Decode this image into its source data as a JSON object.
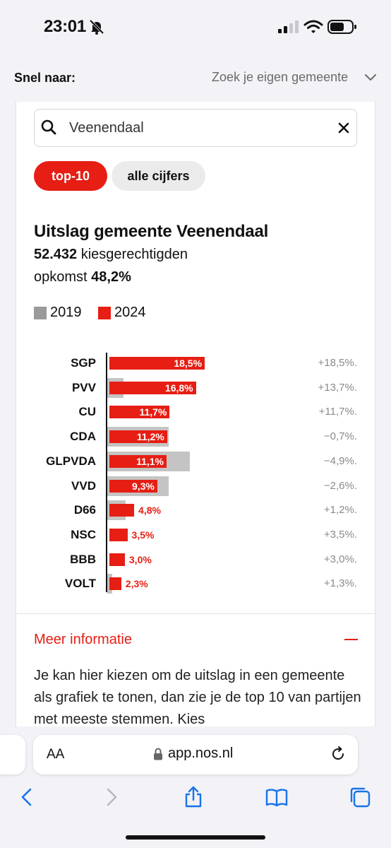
{
  "status": {
    "time": "23:01"
  },
  "snel": {
    "label": "Snel naar:",
    "select": "Zoek je eigen gemeente"
  },
  "search": {
    "value": "Veenendaal"
  },
  "tabs": {
    "top10": "top-10",
    "alle": "alle cijfers"
  },
  "result": {
    "title": "Uitslag gemeente Veenendaal",
    "voters_number": "52.432",
    "voters_label": " kiesgerechtigden",
    "turnout_label": "opkomst ",
    "turnout_value": "48,2%"
  },
  "legend": [
    {
      "label": "2019",
      "color": "#9a9a9a"
    },
    {
      "label": "2024",
      "color": "#e61e14"
    }
  ],
  "chart_data": {
    "type": "bar",
    "categories": [
      "SGP",
      "PVV",
      "CU",
      "CDA",
      "GLPVDA",
      "VVD",
      "D66",
      "NSC",
      "BBB",
      "VOLT"
    ],
    "series": [
      {
        "name": "2019",
        "values": [
          0,
          3.1,
          0,
          11.9,
          16.0,
          11.9,
          3.6,
          0,
          0,
          1.0
        ]
      },
      {
        "name": "2024",
        "values": [
          18.5,
          16.8,
          11.7,
          11.2,
          11.1,
          9.3,
          4.8,
          3.5,
          3.0,
          2.3
        ]
      }
    ],
    "labels": [
      "18,5%",
      "16,8%",
      "11,7%",
      "11,2%",
      "11,1%",
      "9,3%",
      "4,8%",
      "3,5%",
      "3,0%",
      "2,3%"
    ],
    "changes": [
      "+18,5%.",
      "+13,7%.",
      "+11,7%.",
      "−0,7%.",
      "−4,9%.",
      "−2,6%.",
      "+1,2%.",
      "+3,5%.",
      "+3,0%.",
      "+1,3%."
    ],
    "colors": {
      "2019": "#c4c4c4",
      "2024": "#e61e14"
    }
  },
  "info": {
    "title": "Meer informatie",
    "text": "Je kan hier kiezen om de uitslag in een gemeente als grafiek te tonen, dan zie je de top 10 van partijen met meeste stemmen. Kies"
  },
  "browser": {
    "aa": "AA",
    "url": "app.nos.nl"
  },
  "icons": {
    "status": [
      "bell-slash-icon",
      "signal-icon",
      "wifi-icon",
      "battery-icon"
    ],
    "toolbar": [
      "back-icon",
      "forward-icon",
      "share-icon",
      "bookmarks-icon",
      "tabs-icon"
    ]
  }
}
